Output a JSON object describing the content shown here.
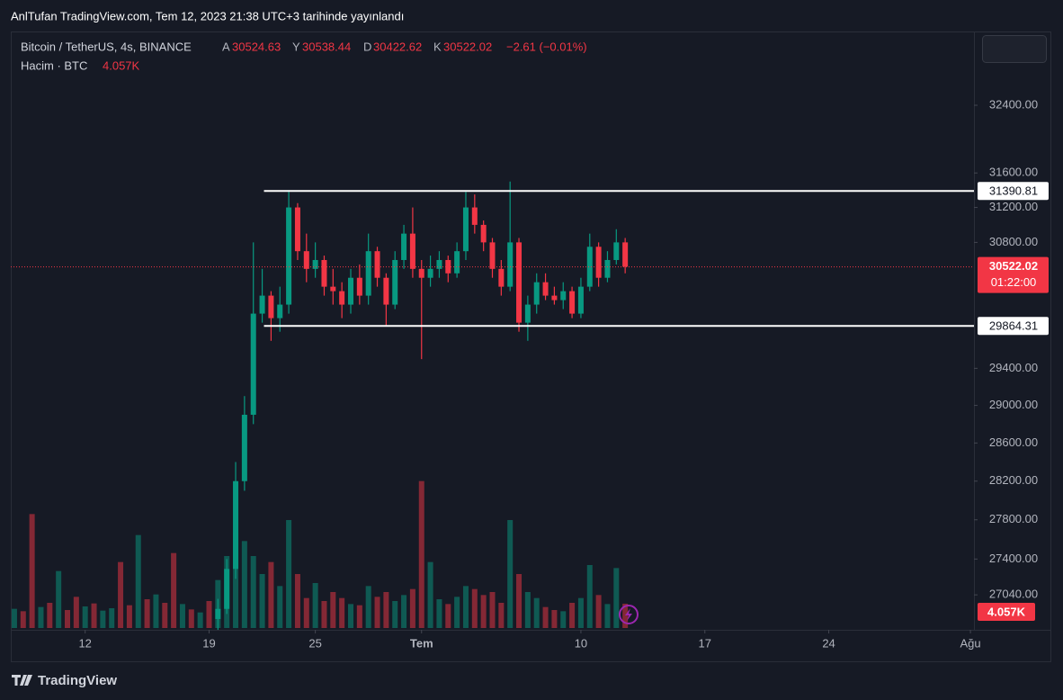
{
  "header": {
    "title": "AnlTufan TradingView.com, Tem 12, 2023 21:38 UTC+3 tarihinde yayınlandı"
  },
  "chart_data": {
    "type": "candlestick",
    "title": "Bitcoin / TetherUS, 4s, BINANCE",
    "ohlc_legend": [
      {
        "label": "A",
        "value": 30524.63
      },
      {
        "label": "Y",
        "value": 30538.44
      },
      {
        "label": "D",
        "value": 30422.62
      },
      {
        "label": "K",
        "value": 30522.02
      }
    ],
    "change": "−2.61 (−0.01%)",
    "volume_title": "Hacim · BTC",
    "last_volume_label": "4.057K",
    "log_scale": true,
    "grid": false,
    "up_color": "#089981",
    "down_color": "#f23645",
    "xlim": [
      7.8,
      62.2
    ],
    "xticks": [
      12,
      19,
      25,
      {
        "value": 31,
        "label": "Tem"
      },
      {
        "value": 40,
        "label": "10"
      },
      {
        "value": 47,
        "label": "17"
      },
      {
        "value": 54,
        "label": "24"
      },
      {
        "value": 62,
        "label": "Ağu"
      }
    ],
    "ylim": [
      26693,
      33262
    ],
    "yticks": [
      {
        "value": 32400,
        "label": "32400.00"
      },
      {
        "value": 31600,
        "label": "31600.00"
      },
      {
        "value": 31200,
        "label": "31200.00"
      },
      {
        "value": 30800,
        "label": "30800.00"
      },
      {
        "value": 29400,
        "label": "29400.00"
      },
      {
        "value": 29000,
        "label": "29000.00"
      },
      {
        "value": 28600,
        "label": "28600.00"
      },
      {
        "value": 28200,
        "label": "28200.00"
      },
      {
        "value": 27800,
        "label": "27800.00"
      },
      {
        "value": 27400,
        "label": "27400.00"
      },
      {
        "value": 27040,
        "label": "27040.00"
      }
    ],
    "candles": {
      "x": [
        19.5,
        20,
        20.5,
        21,
        21.5,
        22,
        22.5,
        23,
        23.5,
        24,
        24.5,
        25,
        25.5,
        26,
        26.5,
        27,
        27.5,
        28,
        28.5,
        29,
        29.5,
        30,
        30.5,
        31,
        31.5,
        32,
        32.5,
        33,
        33.5,
        34,
        34.5,
        35,
        35.5,
        36,
        36.5,
        37,
        37.5,
        38,
        38.5,
        39,
        39.5,
        40,
        40.5,
        41,
        41.5,
        42,
        42.5
      ],
      "open": [
        26800,
        26900,
        27300,
        28200,
        28900,
        30000,
        30200,
        29950,
        30100,
        31200,
        30700,
        30500,
        30600,
        30300,
        30250,
        30100,
        30400,
        30200,
        30700,
        30400,
        30100,
        30600,
        30900,
        30500,
        30400,
        30500,
        30600,
        30450,
        30700,
        31200,
        31000,
        30800,
        30500,
        30300,
        30800,
        29900,
        30100,
        30350,
        30200,
        30150,
        30250,
        30000,
        30300,
        30750,
        30400,
        30600,
        30800
      ],
      "high": [
        27000,
        27400,
        28400,
        29100,
        30800,
        30500,
        30250,
        30300,
        31400,
        31250,
        30900,
        30800,
        30650,
        30500,
        30350,
        30500,
        30550,
        30900,
        30750,
        30450,
        30700,
        31000,
        31200,
        30600,
        30650,
        30700,
        30650,
        30800,
        31380,
        31350,
        31050,
        30850,
        30600,
        31500,
        30850,
        30200,
        30450,
        30450,
        30300,
        30350,
        30300,
        30400,
        30900,
        30800,
        30700,
        30950,
        30850
      ],
      "low": [
        26650,
        26850,
        27200,
        28100,
        28800,
        29900,
        29700,
        29800,
        30000,
        30600,
        30350,
        30400,
        30200,
        30100,
        29950,
        30000,
        30100,
        30100,
        30300,
        29870,
        30050,
        30500,
        30400,
        29500,
        30300,
        30400,
        30350,
        30400,
        30600,
        30900,
        30700,
        30400,
        30200,
        30250,
        29800,
        29700,
        30000,
        30150,
        30100,
        30050,
        29950,
        29950,
        30250,
        30300,
        30350,
        30550,
        30450
      ],
      "close": [
        26900,
        27300,
        28200,
        28900,
        30000,
        30200,
        29950,
        30100,
        31200,
        30700,
        30500,
        30600,
        30300,
        30250,
        30100,
        30400,
        30200,
        30700,
        30400,
        30100,
        30600,
        30900,
        30500,
        30400,
        30500,
        30600,
        30450,
        30700,
        31200,
        31000,
        30800,
        30500,
        30300,
        30800,
        29900,
        30100,
        30350,
        30200,
        30150,
        30250,
        30000,
        30300,
        30750,
        30400,
        30600,
        30800,
        30524.63
      ]
    },
    "volume": {
      "ylim": [
        0,
        30000
      ],
      "x": [
        8,
        8.5,
        9,
        9.5,
        10,
        10.5,
        11,
        11.5,
        12,
        12.5,
        13,
        13.5,
        14,
        14.5,
        15,
        15.5,
        16,
        16.5,
        17,
        17.5,
        18,
        18.5,
        19,
        19.5,
        20,
        20.5,
        21,
        21.5,
        22,
        22.5,
        23,
        23.5,
        24,
        24.5,
        25,
        25.5,
        26,
        26.5,
        27,
        27.5,
        28,
        28.5,
        29,
        29.5,
        30,
        30.5,
        31,
        31.5,
        32,
        32.5,
        33,
        33.5,
        34,
        34.5,
        35,
        35.5,
        36,
        36.5,
        37,
        37.5,
        38,
        38.5,
        39,
        39.5,
        40,
        40.5,
        41,
        41.5,
        42,
        42.5
      ],
      "values": [
        3200,
        2800,
        19000,
        3500,
        4200,
        9500,
        3000,
        5200,
        3600,
        4100,
        2900,
        3300,
        11000,
        3800,
        15500,
        4800,
        5600,
        4200,
        12500,
        4000,
        3100,
        2600,
        4500,
        8000,
        12000,
        16000,
        14500,
        12000,
        9000,
        11000,
        7000,
        18000,
        9000,
        5000,
        7500,
        4500,
        6000,
        5000,
        4000,
        3800,
        7000,
        5200,
        6000,
        4500,
        5500,
        6500,
        24500,
        11000,
        4800,
        4000,
        5200,
        7000,
        6500,
        5500,
        6000,
        4200,
        18000,
        9000,
        6000,
        5000,
        3500,
        3000,
        2800,
        4200,
        5000,
        10500,
        5500,
        4000,
        10000,
        4057
      ],
      "up": [
        true,
        false,
        false,
        true,
        false,
        true,
        false,
        false,
        true,
        false,
        true,
        true,
        false,
        false,
        true,
        false,
        true,
        false,
        false,
        true,
        false,
        true,
        false,
        true,
        true,
        true,
        true,
        true,
        true,
        false,
        true,
        true,
        false,
        false,
        true,
        false,
        false,
        false,
        true,
        false,
        true,
        false,
        false,
        true,
        true,
        false,
        false,
        true,
        true,
        false,
        true,
        true,
        false,
        false,
        false,
        false,
        true,
        false,
        true,
        true,
        false,
        false,
        true,
        false,
        true,
        true,
        false,
        true,
        true,
        false
      ]
    },
    "levels": [
      {
        "value": 31390.81,
        "x": 22.1,
        "color": "#ffffff"
      },
      {
        "value": 29864.31,
        "x": 22.1,
        "color": "#ffffff"
      }
    ],
    "last_price": {
      "value": 30522.02,
      "countdown": "01:22:00"
    }
  },
  "footer": {
    "brand": "TradingView"
  }
}
